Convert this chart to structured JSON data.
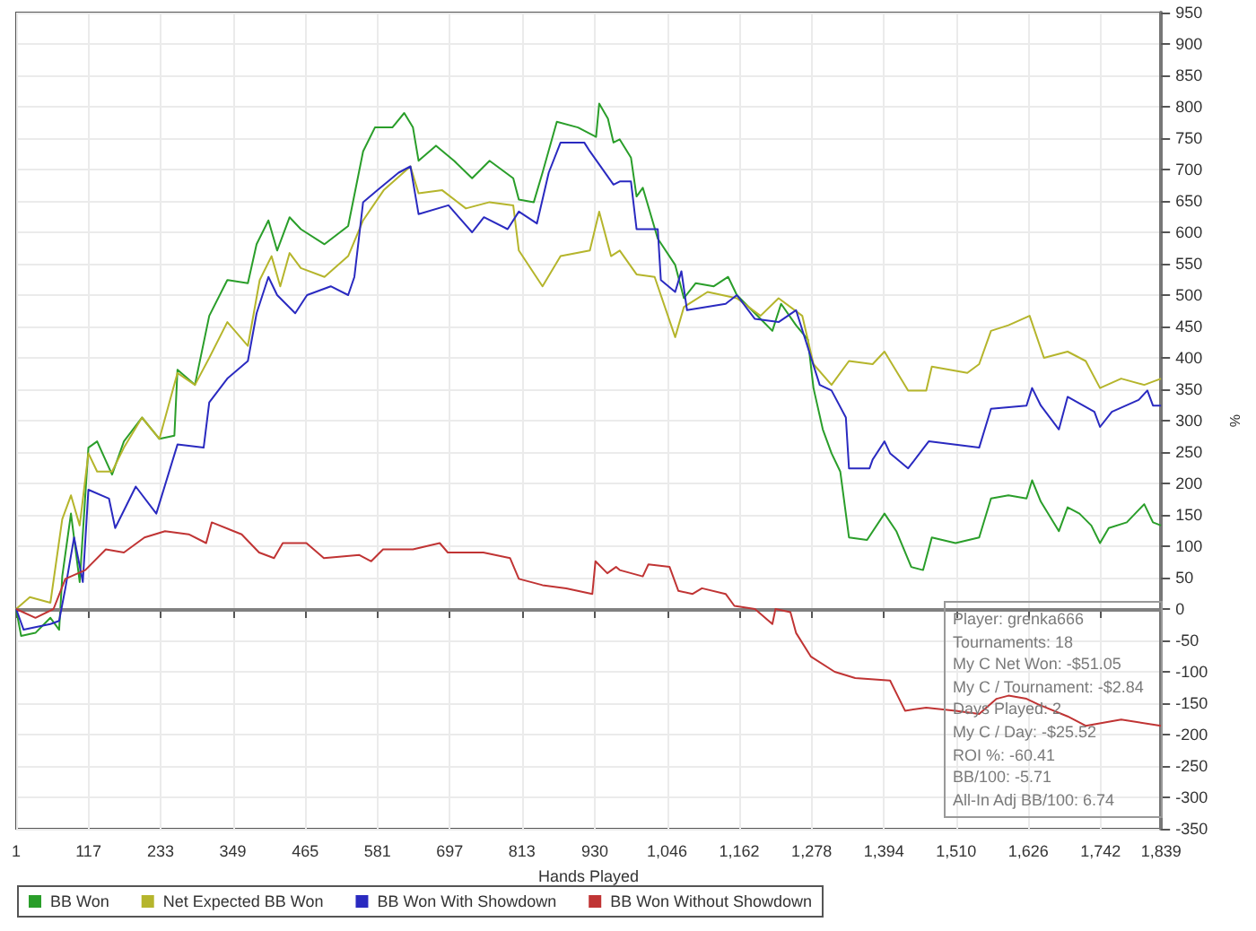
{
  "chart_data": {
    "type": "line",
    "xlabel": "Hands Played",
    "ylabel": "%",
    "xlim": [
      1,
      1839
    ],
    "xticks": [
      1,
      117,
      233,
      349,
      465,
      581,
      697,
      813,
      930,
      {
        "value": 1046,
        "label": "1,046"
      },
      {
        "value": 1162,
        "label": "1,162"
      },
      {
        "value": 1278,
        "label": "1,278"
      },
      {
        "value": 1394,
        "label": "1,394"
      },
      {
        "value": 1510,
        "label": "1,510"
      },
      {
        "value": 1626,
        "label": "1,626"
      },
      {
        "value": 1742,
        "label": "1,742"
      },
      {
        "value": 1839,
        "label": "1,839"
      }
    ],
    "ylim": [
      -350,
      950
    ],
    "yticks": [
      -350,
      -300,
      -250,
      -200,
      -150,
      -100,
      -50,
      0,
      50,
      100,
      150,
      200,
      250,
      300,
      350,
      400,
      450,
      500,
      550,
      600,
      650,
      700,
      750,
      800,
      850,
      900,
      950
    ],
    "grid": true,
    "legend": "bottom left",
    "marker": "none",
    "line_style": "solid",
    "ref_lines": [
      {
        "axis": "y",
        "value": 0,
        "color": "#808080"
      }
    ],
    "annotations": [
      "Player: grenka666",
      "Tournaments: 18",
      "My C Net Won: -$51.05",
      "My C / Tournament: -$2.84",
      "Days Played: 2",
      "My C / Day: -$25.52",
      "ROI %: -60.41",
      "BB/100: -5.71",
      "All-In Adj BB/100: 6.74"
    ],
    "series": [
      {
        "name": "BB Won",
        "color": "#2a9e2a",
        "x": [
          1,
          9,
          32,
          56,
          70,
          75,
          89,
          103,
          117,
          131,
          155,
          174,
          203,
          231,
          255,
          260,
          288,
          311,
          340,
          373,
          387,
          406,
          420,
          440,
          458,
          496,
          534,
          558,
          577,
          605,
          624,
          638,
          647,
          675,
          704,
          733,
          761,
          799,
          808,
          832,
          846,
          869,
          903,
          932,
          937,
          951,
          960,
          970,
          988,
          997,
          1007,
          1031,
          1059,
          1073,
          1092,
          1121,
          1144,
          1158,
          1187,
          1215,
          1229,
          1253,
          1272,
          1281,
          1296,
          1310,
          1324,
          1338,
          1367,
          1395,
          1414,
          1438,
          1457,
          1471,
          1509,
          1547,
          1566,
          1594,
          1623,
          1632,
          1646,
          1675,
          1689,
          1708,
          1727,
          1741,
          1755,
          1784,
          1812,
          1826,
          1839
        ],
        "values": [
          0,
          -43,
          -38,
          -14,
          -33,
          52,
          152,
          43,
          257,
          267,
          214,
          267,
          305,
          271,
          276,
          381,
          357,
          467,
          524,
          519,
          581,
          619,
          571,
          624,
          605,
          581,
          610,
          729,
          767,
          767,
          790,
          767,
          714,
          738,
          714,
          686,
          714,
          686,
          652,
          648,
          695,
          776,
          767,
          752,
          805,
          781,
          743,
          748,
          719,
          657,
          671,
          590,
          548,
          495,
          519,
          514,
          529,
          500,
          471,
          443,
          486,
          452,
          429,
          352,
          286,
          248,
          219,
          114,
          110,
          152,
          124,
          67,
          62,
          114,
          105,
          114,
          176,
          181,
          176,
          205,
          171,
          124,
          162,
          152,
          133,
          105,
          129,
          138,
          167,
          138,
          133
        ]
      },
      {
        "name": "Net Expected BB Won",
        "color": "#b5b52c",
        "x": [
          1,
          23,
          56,
          75,
          89,
          103,
          117,
          131,
          155,
          174,
          203,
          231,
          260,
          288,
          311,
          340,
          373,
          392,
          411,
          425,
          440,
          458,
          496,
          534,
          558,
          591,
          634,
          647,
          685,
          723,
          761,
          799,
          808,
          846,
          875,
          922,
          937,
          956,
          970,
          997,
          1026,
          1059,
          1073,
          1111,
          1158,
          1196,
          1225,
          1263,
          1281,
          1310,
          1338,
          1376,
          1395,
          1433,
          1462,
          1471,
          1528,
          1547,
          1566,
          1594,
          1628,
          1651,
          1689,
          1718,
          1741,
          1775,
          1812,
          1839
        ],
        "values": [
          0,
          19,
          10,
          143,
          181,
          133,
          248,
          219,
          219,
          257,
          305,
          271,
          376,
          357,
          400,
          457,
          419,
          524,
          562,
          514,
          567,
          543,
          529,
          562,
          619,
          667,
          705,
          662,
          667,
          638,
          648,
          643,
          571,
          514,
          562,
          571,
          633,
          562,
          571,
          533,
          529,
          433,
          481,
          505,
          495,
          467,
          495,
          467,
          390,
          357,
          395,
          390,
          410,
          348,
          348,
          386,
          376,
          390,
          443,
          452,
          467,
          400,
          410,
          395,
          352,
          367,
          357,
          367
        ]
      },
      {
        "name": "BB Won With Showdown",
        "color": "#2a2ac0",
        "x": [
          1,
          13,
          56,
          70,
          80,
          94,
          108,
          117,
          150,
          160,
          193,
          226,
          260,
          302,
          311,
          340,
          373,
          387,
          406,
          420,
          449,
          468,
          506,
          534,
          544,
          558,
          581,
          615,
          634,
          647,
          695,
          733,
          752,
          790,
          808,
          837,
          856,
          875,
          913,
          922,
          960,
          970,
          988,
          997,
          1031,
          1036,
          1059,
          1069,
          1078,
          1140,
          1158,
          1187,
          1225,
          1253,
          1268,
          1291,
          1310,
          1333,
          1338,
          1371,
          1376,
          1395,
          1404,
          1433,
          1466,
          1547,
          1566,
          1623,
          1632,
          1646,
          1675,
          1689,
          1732,
          1741,
          1760,
          1803,
          1817,
          1826,
          1839
        ],
        "values": [
          0,
          -33,
          -24,
          -19,
          33,
          114,
          43,
          190,
          176,
          129,
          195,
          152,
          262,
          257,
          329,
          367,
          395,
          471,
          529,
          500,
          471,
          500,
          514,
          500,
          529,
          648,
          667,
          695,
          705,
          629,
          643,
          600,
          624,
          605,
          633,
          614,
          695,
          743,
          743,
          729,
          676,
          681,
          681,
          605,
          605,
          524,
          505,
          538,
          476,
          486,
          500,
          462,
          457,
          476,
          429,
          357,
          348,
          305,
          224,
          224,
          238,
          267,
          248,
          224,
          267,
          257,
          319,
          324,
          352,
          324,
          286,
          338,
          314,
          290,
          314,
          333,
          348,
          324,
          324
        ]
      },
      {
        "name": "BB Won Without Showdown",
        "color": "#c03434",
        "x": [
          1,
          32,
          61,
          80,
          112,
          145,
          174,
          207,
          240,
          278,
          306,
          315,
          363,
          391,
          415,
          429,
          467,
          495,
          552,
          571,
          590,
          638,
          681,
          694,
          751,
          794,
          808,
          846,
          884,
          926,
          931,
          950,
          964,
          970,
          1007,
          1016,
          1050,
          1064,
          1087,
          1102,
          1140,
          1154,
          1187,
          1215,
          1220,
          1244,
          1253,
          1277,
          1315,
          1348,
          1404,
          1428,
          1462,
          1509,
          1547,
          1575,
          1594,
          1623,
          1642,
          1689,
          1718,
          1775,
          1839
        ],
        "values": [
          0,
          -14,
          0,
          48,
          62,
          95,
          90,
          114,
          124,
          119,
          105,
          138,
          119,
          90,
          81,
          105,
          105,
          81,
          86,
          76,
          95,
          95,
          105,
          90,
          90,
          81,
          48,
          38,
          33,
          24,
          76,
          57,
          67,
          62,
          52,
          71,
          67,
          29,
          24,
          33,
          24,
          5,
          0,
          -24,
          0,
          -5,
          -38,
          -76,
          -100,
          -110,
          -114,
          -162,
          -157,
          -162,
          -167,
          -143,
          -138,
          -143,
          -152,
          -171,
          -186,
          -176,
          -186
        ]
      }
    ]
  }
}
